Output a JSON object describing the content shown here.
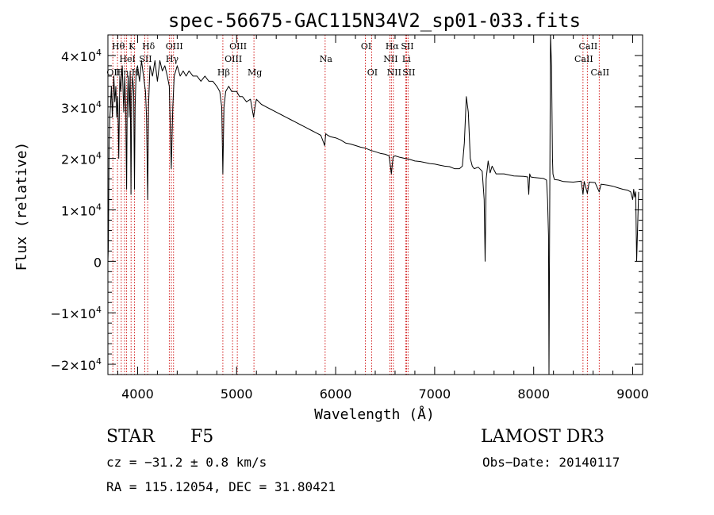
{
  "chart_data": {
    "type": "line",
    "title": "spec-56675-GAC115N34V2_sp01-033.fits",
    "xlabel": "Wavelength (Å)",
    "ylabel": "Flux (relative)",
    "xlim": [
      3700,
      9100
    ],
    "ylim": [
      -22000,
      44000
    ],
    "xticks": [
      4000,
      5000,
      6000,
      7000,
      8000,
      9000
    ],
    "xtick_labels": [
      "4000",
      "5000",
      "6000",
      "7000",
      "8000",
      "9000"
    ],
    "yticks": [
      {
        "value": -20000,
        "mantissa": "−2×10",
        "exp": "4"
      },
      {
        "value": -10000,
        "mantissa": "−1×10",
        "exp": "4"
      },
      {
        "value": 0,
        "mantissa": "0",
        "exp": ""
      },
      {
        "value": 10000,
        "mantissa": "1×10",
        "exp": "4"
      },
      {
        "value": 20000,
        "mantissa": "2×10",
        "exp": "4"
      },
      {
        "value": 30000,
        "mantissa": "3×10",
        "exp": "4"
      },
      {
        "value": 40000,
        "mantissa": "4×10",
        "exp": "4"
      }
    ],
    "line_color": "#000000",
    "marker_line_color": "#cc0000",
    "series": [
      {
        "name": "flux",
        "x": [
          3700,
          3705,
          3712,
          3720,
          3728,
          3735,
          3745,
          3760,
          3770,
          3780,
          3790,
          3800,
          3810,
          3820,
          3830,
          3845,
          3860,
          3870,
          3880,
          3889,
          3895,
          3905,
          3915,
          3925,
          3933,
          3940,
          3950,
          3960,
          3968,
          3975,
          3985,
          4000,
          4020,
          4040,
          4060,
          4080,
          4090,
          4102,
          4110,
          4125,
          4150,
          4175,
          4200,
          4225,
          4250,
          4275,
          4300,
          4320,
          4340,
          4355,
          4370,
          4400,
          4430,
          4460,
          4490,
          4520,
          4560,
          4600,
          4640,
          4680,
          4720,
          4760,
          4800,
          4830,
          4850,
          4861,
          4872,
          4890,
          4920,
          4950,
          4980,
          5000,
          5030,
          5060,
          5100,
          5140,
          5172,
          5185,
          5200,
          5250,
          5300,
          5350,
          5400,
          5450,
          5500,
          5550,
          5600,
          5650,
          5700,
          5750,
          5800,
          5850,
          5890,
          5900,
          5920,
          5950,
          6000,
          6050,
          6100,
          6150,
          6200,
          6250,
          6300,
          6350,
          6400,
          6450,
          6500,
          6540,
          6563,
          6580,
          6600,
          6650,
          6700,
          6750,
          6800,
          6850,
          6900,
          6950,
          7000,
          7050,
          7100,
          7150,
          7200,
          7250,
          7280,
          7300,
          7320,
          7340,
          7360,
          7380,
          7400,
          7440,
          7480,
          7500,
          7510,
          7520,
          7540,
          7560,
          7580,
          7620,
          7700,
          7800,
          7900,
          7940,
          7950,
          7960,
          7970,
          8000,
          8050,
          8100,
          8130,
          8140,
          8150,
          8155,
          8160,
          8170,
          8180,
          8190,
          8195,
          8200,
          8210,
          8250,
          8300,
          8400,
          8480,
          8498,
          8510,
          8542,
          8560,
          8620,
          8662,
          8680,
          8750,
          8800,
          8850,
          8900,
          8950,
          8980,
          9000,
          9010,
          9020,
          9030,
          9040,
          9060
        ],
        "y": [
          0,
          3000,
          22000,
          28000,
          31000,
          34000,
          28000,
          36000,
          31000,
          34000,
          28000,
          32000,
          20000,
          36000,
          33000,
          38000,
          29000,
          36000,
          30000,
          14000,
          30000,
          36000,
          28000,
          37000,
          13000,
          32000,
          36000,
          33000,
          14000,
          30000,
          37000,
          38000,
          35000,
          39000,
          36000,
          33000,
          28000,
          12000,
          30000,
          38000,
          36000,
          39000,
          35000,
          39000,
          37000,
          38000,
          36000,
          34000,
          18000,
          30000,
          36000,
          38000,
          36000,
          37000,
          36000,
          37000,
          36000,
          36000,
          35000,
          36000,
          35000,
          35000,
          34000,
          33000,
          30000,
          17000,
          30000,
          33000,
          34000,
          33000,
          33000,
          33000,
          32000,
          32000,
          31000,
          31500,
          28000,
          30000,
          31500,
          30500,
          30000,
          29500,
          29000,
          28500,
          28000,
          27500,
          27000,
          26500,
          26000,
          25500,
          25000,
          24500,
          22500,
          24800,
          24500,
          24200,
          24000,
          23600,
          23000,
          22800,
          22500,
          22200,
          22000,
          21600,
          21300,
          21000,
          20800,
          20500,
          17000,
          20300,
          20500,
          20200,
          20000,
          19800,
          19500,
          19400,
          19200,
          19000,
          18900,
          18700,
          18500,
          18400,
          18000,
          18000,
          18500,
          23000,
          32000,
          29000,
          20000,
          18500,
          18000,
          18300,
          17500,
          12000,
          0,
          16000,
          19500,
          17200,
          18500,
          17000,
          17000,
          16600,
          16500,
          16400,
          13000,
          17000,
          16400,
          16300,
          16200,
          16100,
          15800,
          12000,
          5000,
          -22000,
          3000,
          44000,
          38000,
          20000,
          17000,
          16500,
          15900,
          15800,
          15500,
          15400,
          15600,
          13000,
          15500,
          13200,
          15400,
          15300,
          13500,
          15000,
          14800,
          14600,
          14300,
          14000,
          13800,
          13500,
          12000,
          14000,
          12500,
          13500,
          0,
          13500
        ]
      }
    ],
    "lines": [
      {
        "x": 3750,
        "label": "OII",
        "row": 3
      },
      {
        "x": 3797,
        "label": "Hθ",
        "row": 1
      },
      {
        "x": 3835,
        "label": "Hη",
        "row": 3
      },
      {
        "x": 3869,
        "label": "",
        "row": 0
      },
      {
        "x": 3889,
        "label": "HeI",
        "row": 2
      },
      {
        "x": 3934,
        "label": "K",
        "row": 1
      },
      {
        "x": 3969,
        "label": "H",
        "row": 3
      },
      {
        "x": 4072,
        "label": "SII",
        "row": 2
      },
      {
        "x": 4102,
        "label": "Hδ",
        "row": 1
      },
      {
        "x": 4320,
        "label": "",
        "row": 0
      },
      {
        "x": 4341,
        "label": "Hγ",
        "row": 2
      },
      {
        "x": 4363,
        "label": "OIII",
        "row": 1
      },
      {
        "x": 4861,
        "label": "Hβ",
        "row": 3
      },
      {
        "x": 4959,
        "label": "OIII",
        "row": 2
      },
      {
        "x": 5007,
        "label": "OIII",
        "row": 1
      },
      {
        "x": 5175,
        "label": "Mg",
        "row": 3
      },
      {
        "x": 5894,
        "label": "Na",
        "row": 2
      },
      {
        "x": 6300,
        "label": "OI",
        "row": 1
      },
      {
        "x": 6363,
        "label": "OI",
        "row": 3
      },
      {
        "x": 6548,
        "label": "NII",
        "row": 2
      },
      {
        "x": 6563,
        "label": "Hα",
        "row": 1
      },
      {
        "x": 6583,
        "label": "NII",
        "row": 3
      },
      {
        "x": 6707,
        "label": "Li",
        "row": 2
      },
      {
        "x": 6716,
        "label": "SII",
        "row": 1
      },
      {
        "x": 6731,
        "label": "SII",
        "row": 3
      },
      {
        "x": 8498,
        "label": "CaII",
        "row": 2
      },
      {
        "x": 8542,
        "label": "CaII",
        "row": 1
      },
      {
        "x": 8662,
        "label": "CaII",
        "row": 3
      }
    ]
  },
  "info": {
    "object_class": "STAR",
    "subclass": "F5",
    "survey": "LAMOST DR3",
    "velocity": "cz = −31.2 ± 0.8 km/s",
    "obs_date": "Obs−Date: 20140117",
    "coords": "RA = 115.12054, DEC =  31.80421"
  }
}
